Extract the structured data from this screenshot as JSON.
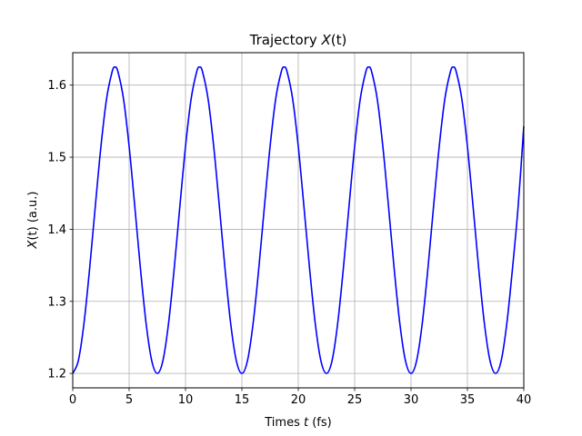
{
  "chart_data": {
    "type": "line",
    "title_main": "Trajectory ",
    "title_var": "X",
    "title_arg": "(t)",
    "xlabel_main": "Times ",
    "xlabel_var": "t",
    "xlabel_unit": " (fs)",
    "ylabel_var": "X",
    "ylabel_rest": "(t) (a.u.)",
    "xlim": [
      0,
      40
    ],
    "ylim": [
      1.18,
      1.645
    ],
    "x_ticks": [
      0,
      5,
      10,
      15,
      20,
      25,
      30,
      35,
      40
    ],
    "x_tick_labels": [
      "0",
      "5",
      "10",
      "15",
      "20",
      "25",
      "30",
      "35",
      "40"
    ],
    "y_ticks": [
      1.2,
      1.3,
      1.4,
      1.5,
      1.6
    ],
    "y_tick_labels": [
      "1.2",
      "1.3",
      "1.4",
      "1.5",
      "1.6"
    ],
    "grid": true,
    "series": [
      {
        "color": "#0000ff",
        "x": [
          0,
          0.5,
          1,
          1.5,
          2,
          2.5,
          3,
          3.5,
          3.75,
          4,
          4.5,
          5,
          5.5,
          6,
          6.5,
          7,
          7.5,
          8,
          8.5,
          9,
          9.5,
          10,
          10.5,
          11,
          11.25,
          11.5,
          12,
          12.5,
          13,
          13.5,
          14,
          14.5,
          15,
          15.5,
          16,
          16.5,
          17,
          17.5,
          18,
          18.5,
          18.75,
          19,
          19.5,
          20,
          20.5,
          21,
          21.5,
          22,
          22.5,
          23,
          23.5,
          24,
          24.5,
          25,
          25.5,
          26,
          26.25,
          26.5,
          27,
          27.5,
          28,
          28.5,
          29,
          29.5,
          30,
          30.5,
          31,
          31.5,
          32,
          32.5,
          33,
          33.5,
          33.75,
          34,
          34.5,
          35,
          35.5,
          36,
          36.5,
          37,
          37.5,
          38,
          38.5,
          39,
          39.5,
          40
        ],
        "y": [
          1.2,
          1.218,
          1.27,
          1.346,
          1.432,
          1.515,
          1.581,
          1.619,
          1.625,
          1.619,
          1.581,
          1.515,
          1.432,
          1.346,
          1.27,
          1.218,
          1.2,
          1.218,
          1.27,
          1.346,
          1.432,
          1.515,
          1.581,
          1.619,
          1.625,
          1.619,
          1.581,
          1.515,
          1.432,
          1.346,
          1.27,
          1.218,
          1.2,
          1.218,
          1.27,
          1.346,
          1.432,
          1.515,
          1.581,
          1.619,
          1.625,
          1.619,
          1.581,
          1.515,
          1.432,
          1.346,
          1.27,
          1.218,
          1.2,
          1.218,
          1.27,
          1.346,
          1.432,
          1.515,
          1.581,
          1.619,
          1.625,
          1.619,
          1.581,
          1.515,
          1.432,
          1.346,
          1.27,
          1.218,
          1.2,
          1.218,
          1.27,
          1.346,
          1.432,
          1.515,
          1.581,
          1.619,
          1.625,
          1.619,
          1.581,
          1.515,
          1.432,
          1.346,
          1.27,
          1.218,
          1.2,
          1.218,
          1.27,
          1.346,
          1.432,
          1.543
        ]
      }
    ]
  }
}
